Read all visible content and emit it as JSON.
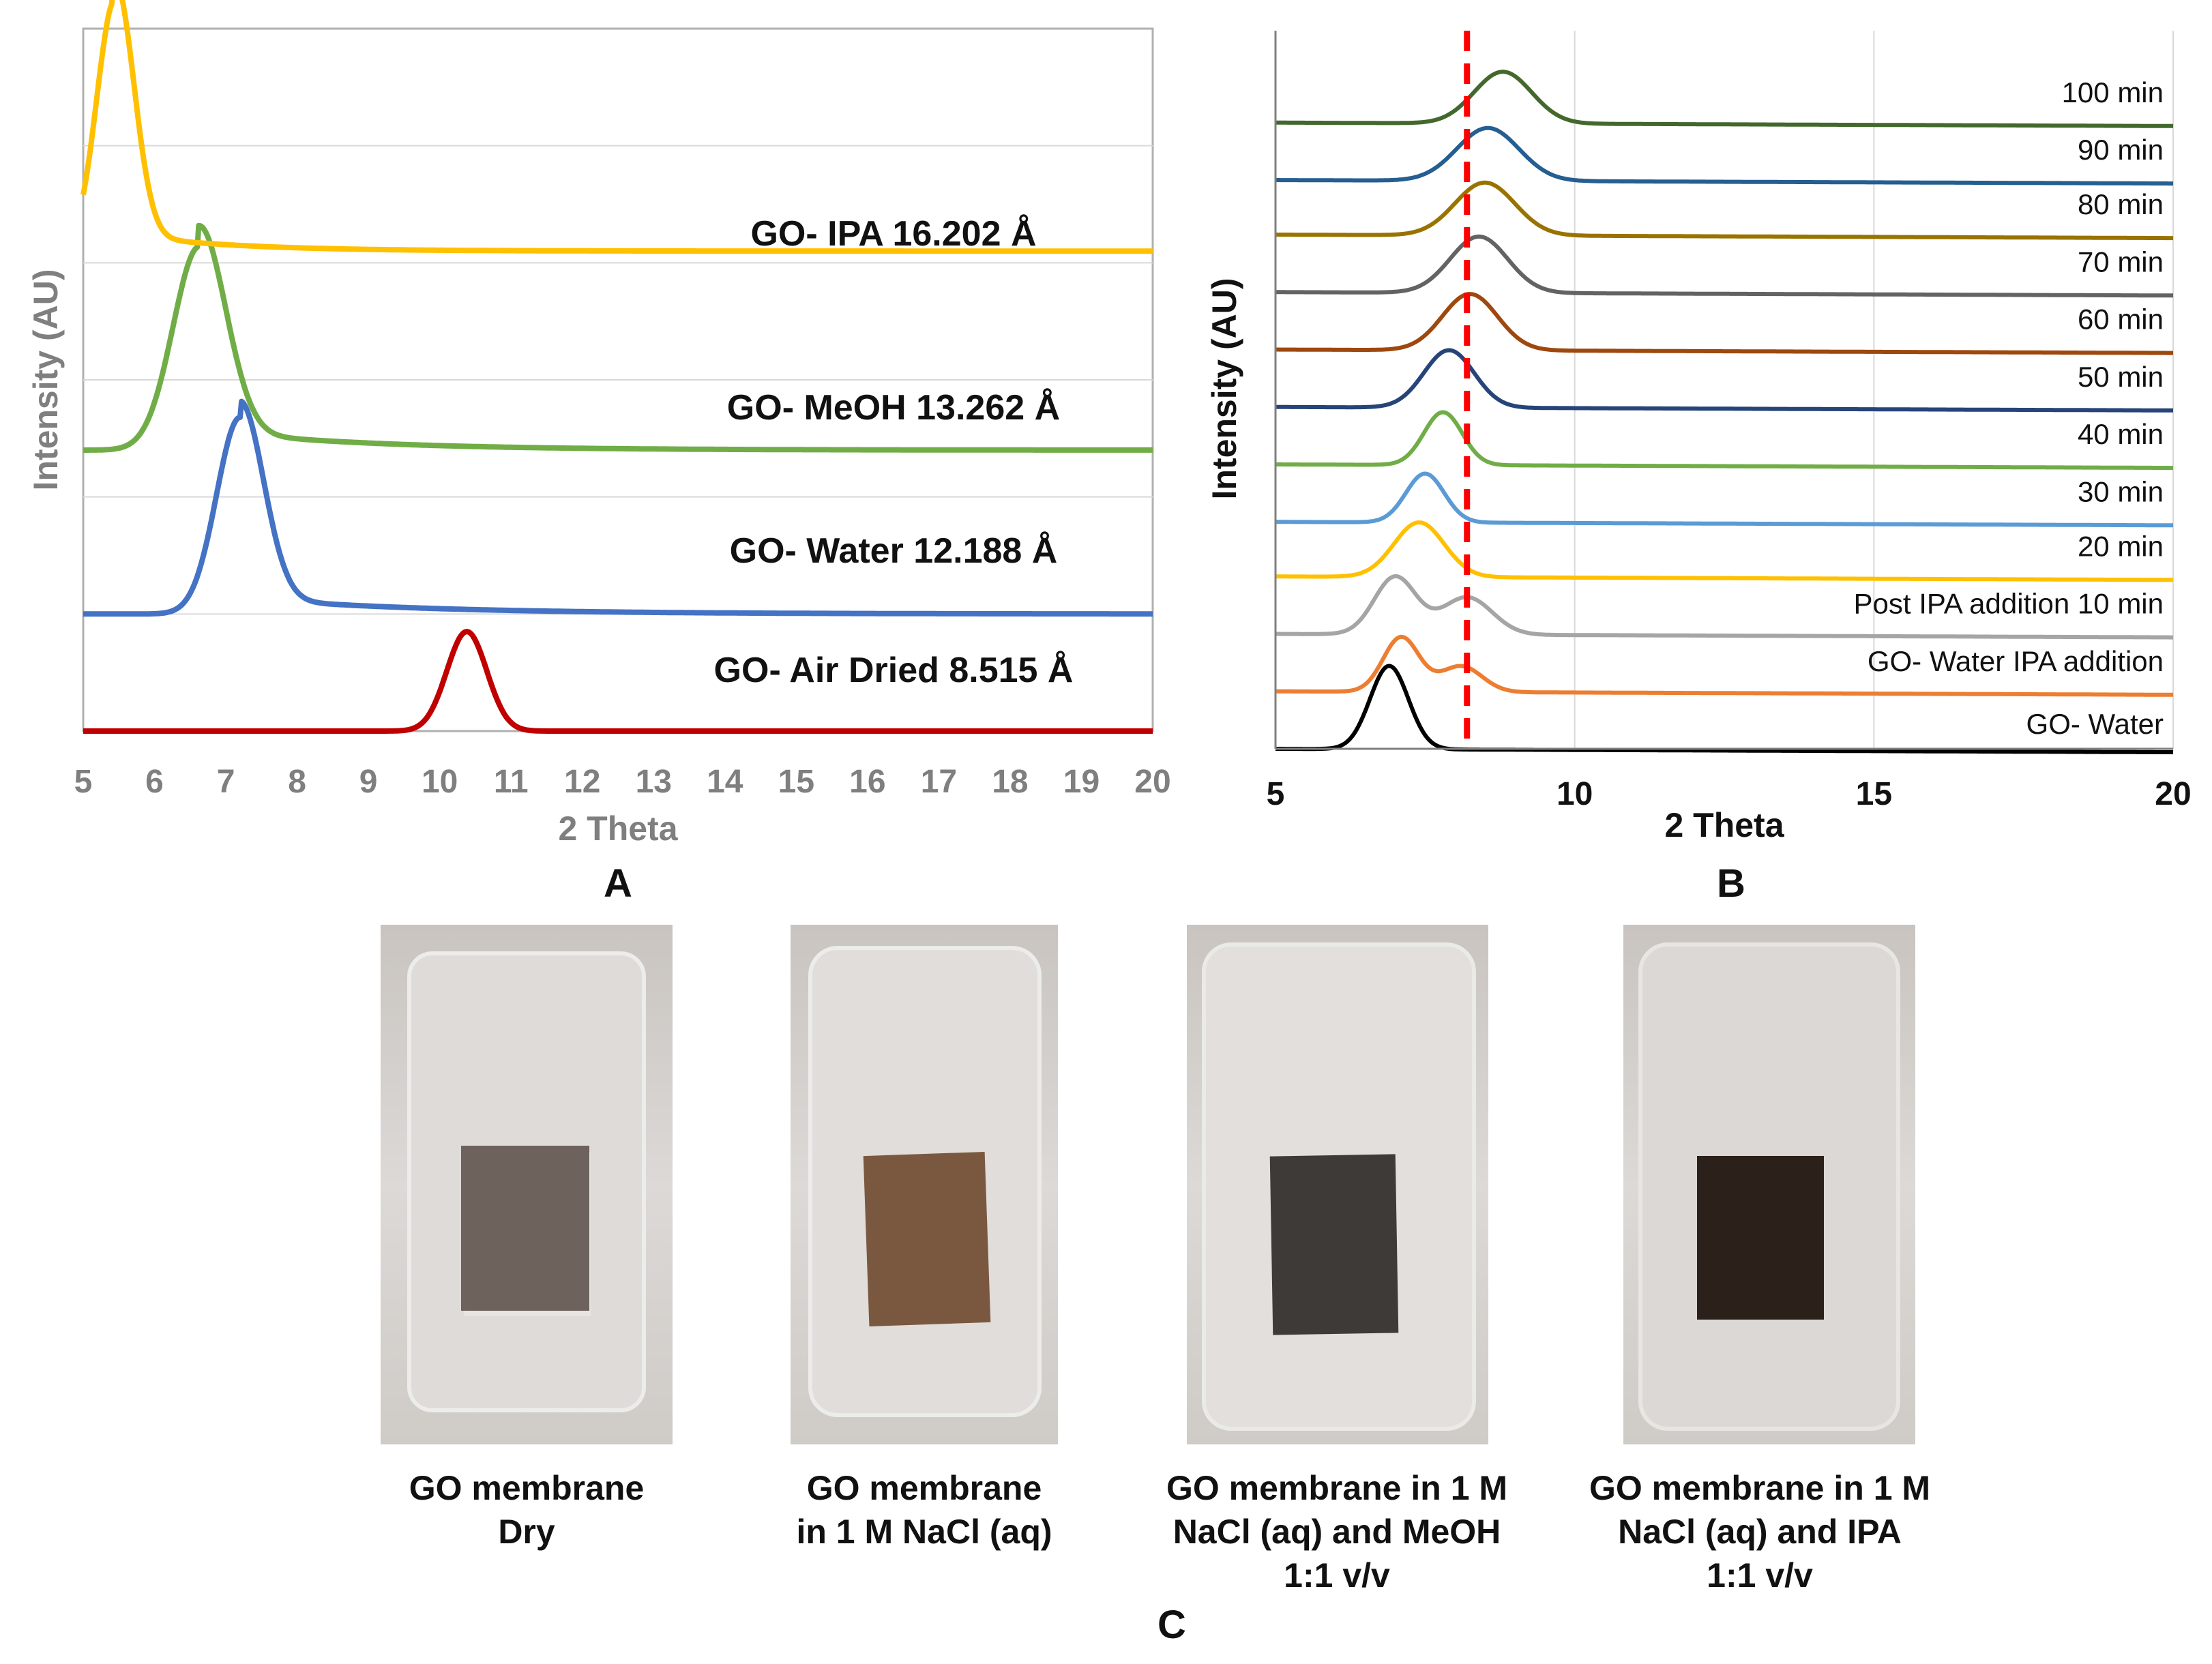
{
  "chart_data": [
    {
      "panel": "A",
      "type": "line",
      "title": "",
      "xlabel": "2 Theta",
      "ylabel": "Intensity (AU)",
      "xlim": [
        5,
        20
      ],
      "ylim": [
        0,
        6
      ],
      "xticks": [
        5,
        6,
        7,
        8,
        9,
        10,
        11,
        12,
        13,
        14,
        15,
        16,
        17,
        18,
        19,
        20
      ],
      "grid": "horizontal",
      "legend": "inline labels at right",
      "series": [
        {
          "name": "GO- Air Dried",
          "label": "GO- Air Dried 8.515 Å",
          "color": "#c00000",
          "peak_x": 10.38,
          "peak_height": 0.85,
          "width": 0.28,
          "baseline": 0.0
        },
        {
          "name": "GO- Water",
          "label": "GO- Water 12.188 Å",
          "color": "#4472c4",
          "peak_x": 7.2,
          "peak_height": 1.68,
          "width": 0.33,
          "baseline": 1.0
        },
        {
          "name": "GO- MeOH",
          "label": "GO- MeOH 13.262 Å",
          "color": "#70ad47",
          "peak_x": 6.63,
          "peak_height": 1.74,
          "width": 0.37,
          "baseline": 2.4
        },
        {
          "name": "GO- IPA",
          "label": "GO- IPA 16.202 Å",
          "color": "#ffc000",
          "peak_x": 5.45,
          "peak_height": 2.15,
          "width": 0.26,
          "baseline": 4.1
        }
      ]
    },
    {
      "panel": "B",
      "type": "line",
      "title": "",
      "xlabel": "2 Theta",
      "ylabel": "Intensity (AU)",
      "xlim": [
        5,
        20
      ],
      "ylim": [
        0,
        12.5
      ],
      "xticks": [
        5,
        10,
        15,
        20
      ],
      "grid": "vertical",
      "reference_line": {
        "x": 8.2,
        "style": "dashed",
        "color": "#ff0000"
      },
      "legend": "inline labels at right",
      "series": [
        {
          "name": "GO- Water",
          "color": "#000000",
          "peaks": [
            [
              6.9,
              1.45,
              0.32
            ]
          ],
          "baseline": 0.0
        },
        {
          "name": "GO- Water IPA addition",
          "color": "#ed7d31",
          "peaks": [
            [
              7.1,
              0.95,
              0.3
            ],
            [
              8.1,
              0.45,
              0.35
            ]
          ],
          "baseline": 1.0
        },
        {
          "name": "Post IPA addition 10 min",
          "color": "#a5a5a5",
          "peaks": [
            [
              7.0,
              1.0,
              0.35
            ],
            [
              8.2,
              0.65,
              0.42
            ]
          ],
          "baseline": 2.0
        },
        {
          "name": "20 min",
          "color": "#ffc000",
          "peaks": [
            [
              7.4,
              0.95,
              0.42
            ]
          ],
          "baseline": 3.0
        },
        {
          "name": "30 min",
          "color": "#5b9bd5",
          "peaks": [
            [
              7.5,
              0.85,
              0.32
            ]
          ],
          "baseline": 3.95
        },
        {
          "name": "40 min",
          "color": "#70ad47",
          "peaks": [
            [
              7.8,
              0.92,
              0.32
            ]
          ],
          "baseline": 4.95
        },
        {
          "name": "50 min",
          "color": "#264478",
          "peaks": [
            [
              7.9,
              1.0,
              0.42
            ]
          ],
          "baseline": 5.95
        },
        {
          "name": "60 min",
          "color": "#9e480e",
          "peaks": [
            [
              8.25,
              0.98,
              0.46
            ]
          ],
          "baseline": 6.95
        },
        {
          "name": "70 min",
          "color": "#636363",
          "peaks": [
            [
              8.4,
              0.98,
              0.48
            ]
          ],
          "baseline": 7.95
        },
        {
          "name": "80 min",
          "color": "#997300",
          "peaks": [
            [
              8.5,
              0.92,
              0.5
            ]
          ],
          "baseline": 8.95
        },
        {
          "name": "90 min",
          "color": "#255e91",
          "peaks": [
            [
              8.55,
              0.92,
              0.52
            ]
          ],
          "baseline": 9.9
        },
        {
          "name": "100 min",
          "color": "#43682b",
          "peaks": [
            [
              8.8,
              0.9,
              0.48
            ]
          ],
          "baseline": 10.9
        }
      ]
    }
  ],
  "panel_labels": {
    "a": "A",
    "b": "B",
    "c": "C"
  },
  "photos": [
    {
      "caption_lines": [
        "GO membrane",
        "Dry"
      ],
      "membrane_color": "#6d625c"
    },
    {
      "caption_lines": [
        "GO membrane",
        "in 1 M NaCl (aq)"
      ],
      "membrane_color": "#7a5840"
    },
    {
      "caption_lines": [
        "GO membrane in 1 M",
        "NaCl (aq) and MeOH",
        "1:1 v/v"
      ],
      "membrane_color": "#3d3a38"
    },
    {
      "caption_lines": [
        "GO membrane in 1 M",
        "NaCl (aq) and IPA",
        "1:1 v/v"
      ],
      "membrane_color": "#2c201b"
    }
  ]
}
